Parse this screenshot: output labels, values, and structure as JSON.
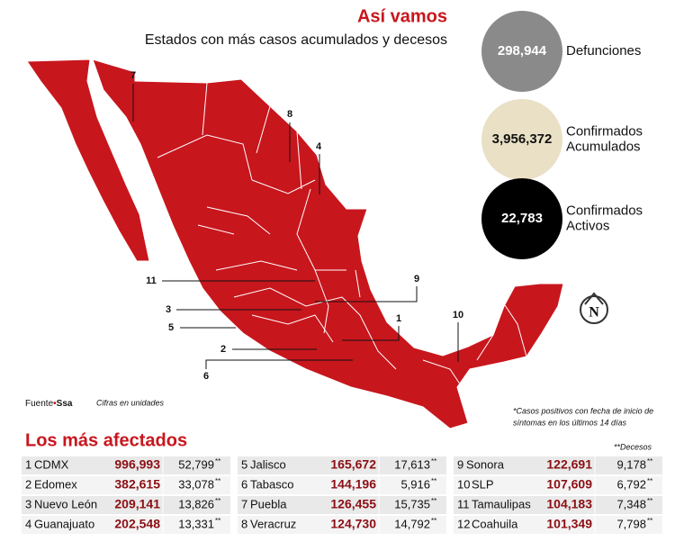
{
  "header": {
    "title": "Así vamos",
    "subtitle": "Estados con más casos acumulados y decesos"
  },
  "stats": [
    {
      "value": "298,944",
      "label": [
        "Defunciones"
      ]
    },
    {
      "value": "3,956,372",
      "label": [
        "Confirmados",
        "Acumulados"
      ]
    },
    {
      "value": "22,783",
      "label": [
        "Confirmados",
        "Activos"
      ]
    }
  ],
  "map_labels": [
    "7",
    "8",
    "4",
    "11",
    "9",
    "3",
    "1",
    "5",
    "10",
    "2",
    "6"
  ],
  "source": {
    "label": "Fuente",
    "dot": "•",
    "name": "Ssa",
    "note": "Cifras en unidades"
  },
  "footnote": [
    "*Casos positivos con fecha de inicio de",
    "síntomas en los últimos 14 días"
  ],
  "table": {
    "title": "Los más afectados",
    "legend": "**Decesos",
    "marker": "**",
    "rows": [
      [
        "1",
        "CDMX",
        "996,993",
        "52,799"
      ],
      [
        "2",
        "Edomex",
        "382,615",
        "33,078"
      ],
      [
        "3",
        "Nuevo León",
        "209,141",
        "13,826"
      ],
      [
        "4",
        "Guanajuato",
        "202,548",
        "13,331"
      ],
      [
        "5",
        "Jalisco",
        "165,672",
        "17,613"
      ],
      [
        "6",
        "Tabasco",
        "144,196",
        "5,916"
      ],
      [
        "7",
        "Puebla",
        "126,455",
        "15,735"
      ],
      [
        "8",
        "Veracruz",
        "124,730",
        "14,792"
      ],
      [
        "9",
        "Sonora",
        "122,691",
        "9,178"
      ],
      [
        "10",
        "SLP",
        "107,609",
        "6,792"
      ],
      [
        "11",
        "Tamaulipas",
        "104,183",
        "7,348"
      ],
      [
        "12",
        "Coahuila",
        "101,349",
        "7,798"
      ]
    ]
  }
}
